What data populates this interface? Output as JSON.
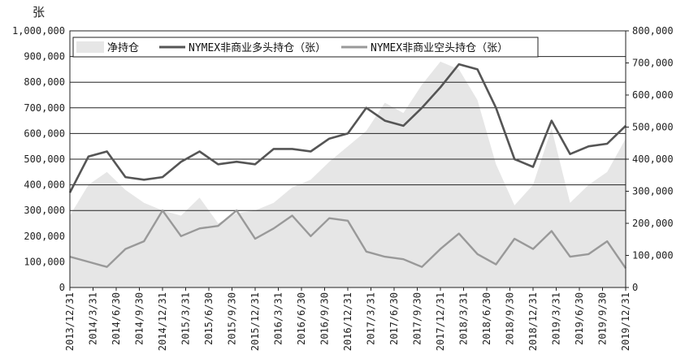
{
  "chart_data": {
    "type": "area+line",
    "y_unit_label": "张",
    "ylim_left": [
      0,
      1000000
    ],
    "ylim_right": [
      0,
      800000
    ],
    "left_ticks": [
      "1,000,000",
      "900,000",
      "800,000",
      "700,000",
      "600,000",
      "500,000",
      "400,000",
      "300,000",
      "200,000",
      "100,000",
      "0"
    ],
    "right_ticks": [
      "800,000",
      "700,000",
      "600,000",
      "500,000",
      "400,000",
      "300,000",
      "200,000",
      "100,000",
      "0"
    ],
    "x_ticks": [
      "2013/12/31",
      "2014/3/31",
      "2014/6/30",
      "2014/9/30",
      "2014/12/31",
      "2015/3/31",
      "2015/6/30",
      "2015/9/30",
      "2015/12/31",
      "2016/3/31",
      "2016/6/30",
      "2016/9/30",
      "2016/12/31",
      "2017/3/31",
      "2017/6/30",
      "2017/9/30",
      "2017/12/31",
      "2018/3/31",
      "2018/6/30",
      "2018/9/30",
      "2018/12/31",
      "2019/3/31",
      "2019/6/30",
      "2019/9/30",
      "2019/12/31"
    ],
    "grid_lines_at": [
      300000,
      400000,
      500000,
      600000,
      700000,
      800000,
      900000
    ],
    "legend": [
      "净持仓",
      "NYMEX非商业多头持仓（张）",
      "NYMEX非商业空头持仓（张）"
    ],
    "series": [
      {
        "name": "净持仓",
        "axis": "left",
        "color": "#e6e6e6",
        "values": [
          280000,
          400000,
          450000,
          380000,
          330000,
          300000,
          280000,
          350000,
          250000,
          290000,
          300000,
          330000,
          390000,
          420000,
          490000,
          550000,
          610000,
          720000,
          680000,
          790000,
          880000,
          850000,
          730000,
          480000,
          320000,
          400000,
          620000,
          330000,
          400000,
          450000,
          580000
        ]
      },
      {
        "name": "NYMEX非商业多头持仓（张）",
        "axis": "left",
        "color": "#555555",
        "values": [
          370000,
          510000,
          530000,
          430000,
          420000,
          430000,
          490000,
          530000,
          480000,
          490000,
          480000,
          540000,
          540000,
          530000,
          580000,
          600000,
          700000,
          650000,
          630000,
          700000,
          780000,
          870000,
          850000,
          700000,
          500000,
          470000,
          650000,
          520000,
          550000,
          560000,
          630000
        ]
      },
      {
        "name": "NYMEX非商业空头持仓（张）",
        "axis": "left",
        "color": "#999999",
        "values": [
          120000,
          100000,
          80000,
          150000,
          180000,
          300000,
          200000,
          230000,
          240000,
          300000,
          190000,
          230000,
          280000,
          200000,
          270000,
          260000,
          140000,
          120000,
          110000,
          80000,
          150000,
          210000,
          130000,
          90000,
          190000,
          150000,
          220000,
          120000,
          130000,
          180000,
          75000
        ]
      }
    ]
  }
}
